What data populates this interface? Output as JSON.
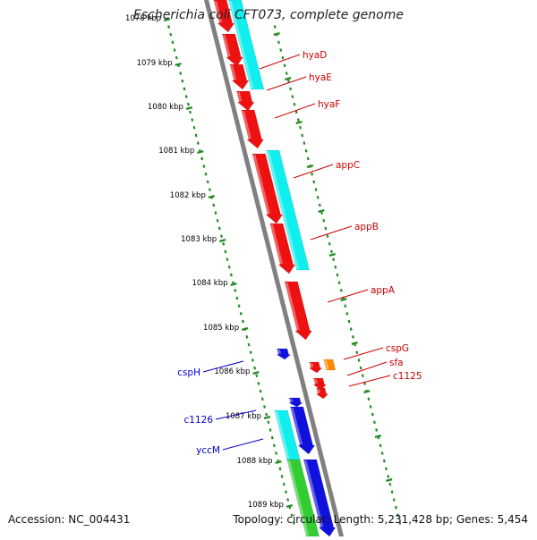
{
  "title": "Escherichia coli CFT073, complete genome",
  "footer": {
    "accession": "Accession: NC_004431",
    "summary": "Topology: circular; Length: 5,231,428 bp; Genes: 5,454"
  },
  "colors": {
    "axis": "#808080",
    "tick": "#228b22",
    "right_label": "#cc0000",
    "left_label": "#0000cc",
    "cds_red": "#ee1111",
    "cds_cyan": "#11eeee",
    "cds_blue": "#1111dd",
    "cds_green": "#33cc33",
    "cds_orange": "#ff8800"
  },
  "map": {
    "kbp_ticks": [
      "1078 kbp",
      "1079 kbp",
      "1080 kbp",
      "1081 kbp",
      "1082 kbp",
      "1083 kbp",
      "1084 kbp",
      "1085 kbp",
      "1086 kbp",
      "1087 kbp",
      "1088 kbp",
      "1089 kbp"
    ],
    "gene_labels_right": [
      "hyaD",
      "hyaE",
      "hyaF",
      "appC",
      "appB",
      "appA",
      "cspG",
      "sfa",
      "c1125"
    ],
    "gene_labels_left": [
      "cspH",
      "c1126",
      "yccM"
    ]
  }
}
